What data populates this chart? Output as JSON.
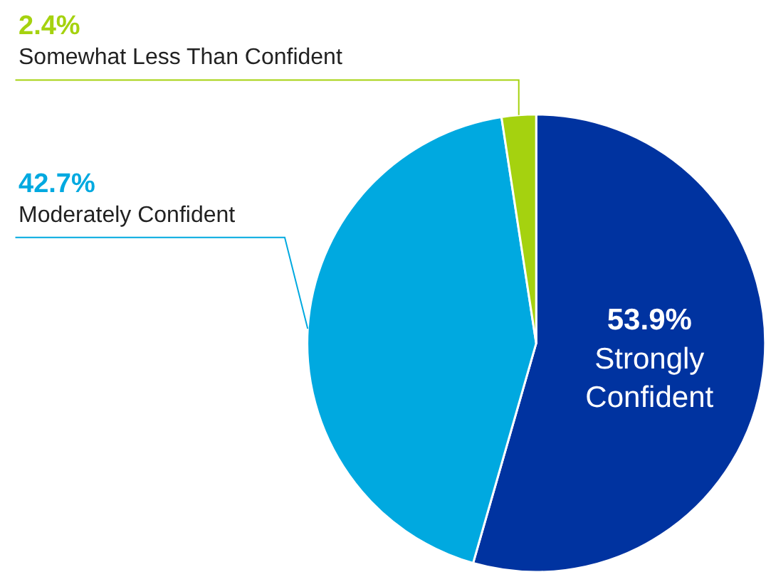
{
  "chart_data": {
    "type": "pie",
    "categories": [
      "Strongly Confident",
      "Moderately Confident",
      "Somewhat Less Than Confident"
    ],
    "values": [
      53.9,
      42.7,
      2.4
    ],
    "colors": [
      "#0033a0",
      "#00a9e0",
      "#a5d20f"
    ],
    "value_labels": [
      "53.9%",
      "42.7%",
      "2.4%"
    ]
  }
}
